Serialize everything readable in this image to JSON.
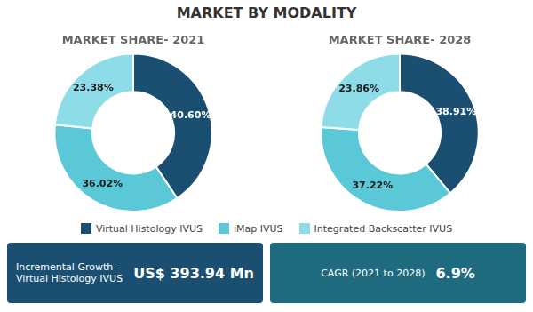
{
  "title": "MARKET BY MODALITY",
  "annotations": [
    "Incremental Growth -\nVirtual Histology IVUS",
    "US$ 393.94 Mn",
    "CAGR (2021 to 2028)",
    "6.9%"
  ],
  "chart_data": [
    {
      "type": "pie",
      "title": "MARKET SHARE- 2021",
      "categories": [
        "Virtual Histology IVUS",
        "iMap IVUS",
        "Integrated Backscatter IVUS"
      ],
      "values": [
        40.6,
        36.02,
        23.38
      ],
      "value_labels": [
        "40.60%",
        "36.02%",
        "23.38%"
      ],
      "colors": [
        "#1a4f72",
        "#5bc8d8",
        "#8ddce8"
      ],
      "data_labels": true,
      "legend": "bottom"
    },
    {
      "type": "pie",
      "title": "MARKET SHARE- 2028",
      "categories": [
        "Virtual Histology IVUS",
        "iMap IVUS",
        "Integrated Backscatter IVUS"
      ],
      "values": [
        38.91,
        37.22,
        23.86
      ],
      "value_labels": [
        "38.91%",
        "37.22%",
        "23.86%"
      ],
      "colors": [
        "#1a4f72",
        "#5bc8d8",
        "#8ddce8"
      ],
      "data_labels": true
    }
  ]
}
